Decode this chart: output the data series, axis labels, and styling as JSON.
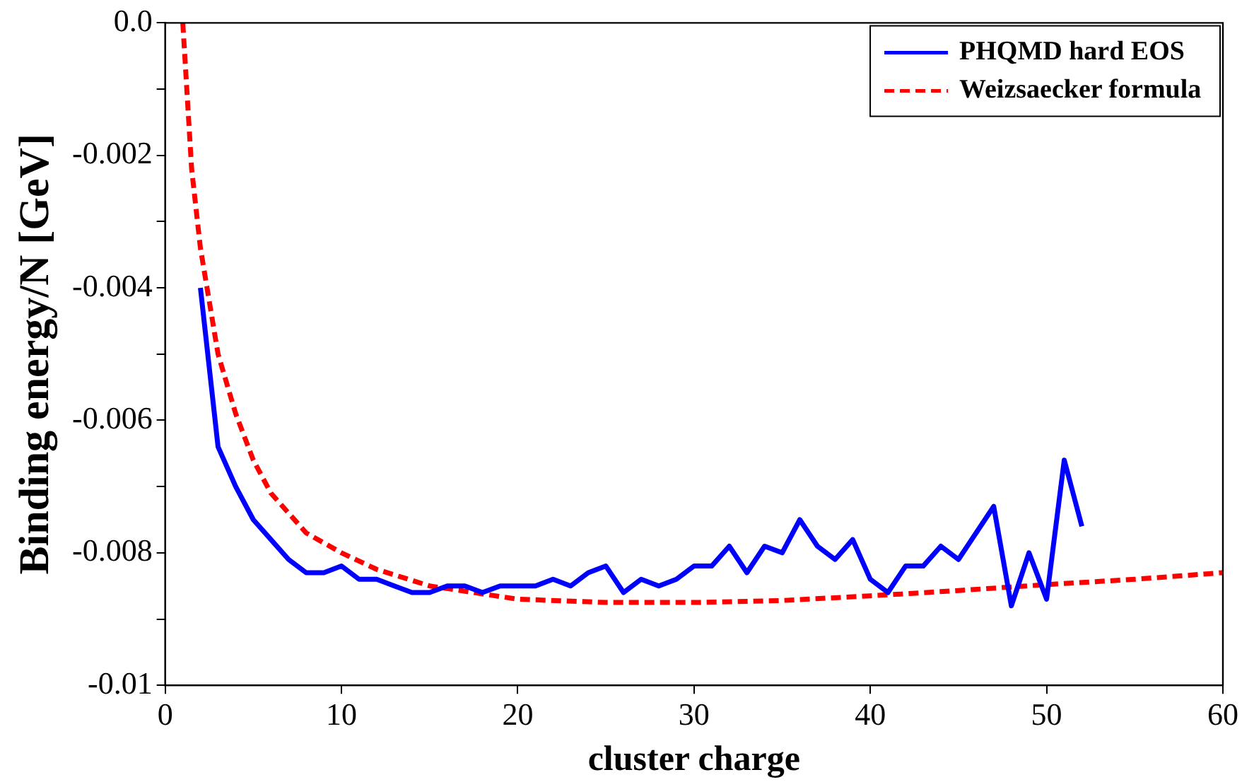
{
  "chart_data": {
    "type": "line",
    "xlabel": "cluster charge",
    "ylabel": "Binding energy/N [GeV]",
    "xlim": [
      0,
      60
    ],
    "xticks": [
      0,
      10,
      20,
      30,
      40,
      50,
      60
    ],
    "ylim": [
      -0.01,
      0
    ],
    "yticks": [
      {
        "value": 0,
        "label": "0.0"
      },
      {
        "value": -0.001,
        "label": null
      },
      -0.002,
      {
        "value": -0.003,
        "label": null
      },
      -0.004,
      {
        "value": -0.005,
        "label": null
      },
      -0.006,
      {
        "value": -0.007,
        "label": null
      },
      -0.008,
      {
        "value": -0.009,
        "label": null
      },
      -0.01
    ],
    "grid": false,
    "legend": "top right",
    "marker": "none",
    "series": [
      {
        "name": "PHQMD hard EOS",
        "color": "#0000ff",
        "line_style": "solid",
        "x": [
          2,
          3,
          4,
          5,
          6,
          7,
          8,
          9,
          10,
          11,
          12,
          13,
          14,
          15,
          16,
          17,
          18,
          19,
          20,
          21,
          22,
          23,
          24,
          25,
          26,
          27,
          28,
          29,
          30,
          31,
          32,
          33,
          34,
          35,
          36,
          37,
          38,
          39,
          40,
          41,
          42,
          43,
          44,
          45,
          46,
          47,
          48,
          49,
          50,
          51,
          52
        ],
        "values": [
          -0.004,
          -0.0064,
          -0.007,
          -0.0075,
          -0.0078,
          -0.0081,
          -0.0083,
          -0.0083,
          -0.0082,
          -0.0084,
          -0.0084,
          -0.0085,
          -0.0086,
          -0.0086,
          -0.0085,
          -0.0085,
          -0.0086,
          -0.0085,
          -0.0085,
          -0.0085,
          -0.0084,
          -0.0085,
          -0.0083,
          -0.0082,
          -0.0086,
          -0.0084,
          -0.0085,
          -0.0084,
          -0.0082,
          -0.0082,
          -0.0079,
          -0.0083,
          -0.0079,
          -0.008,
          -0.0075,
          -0.0079,
          -0.0081,
          -0.0078,
          -0.0084,
          -0.0086,
          -0.0082,
          -0.0082,
          -0.0079,
          -0.0081,
          -0.0077,
          -0.0073,
          -0.0088,
          -0.008,
          -0.0087,
          -0.0066,
          -0.0076
        ]
      },
      {
        "name": "Weizsaecker formula",
        "color": "#ff0000",
        "line_style": "dashed",
        "x": [
          1,
          1.5,
          2,
          3,
          4,
          5,
          6,
          7,
          8,
          10,
          12,
          15,
          20,
          25,
          30,
          35,
          40,
          45,
          50,
          55,
          60
        ],
        "values": [
          0,
          -0.0022,
          -0.0034,
          -0.005,
          -0.0059,
          -0.0066,
          -0.0071,
          -0.0074,
          -0.0077,
          -0.008,
          -0.00825,
          -0.0085,
          -0.0087,
          -0.00875,
          -0.00875,
          -0.00872,
          -0.00865,
          -0.00857,
          -0.00848,
          -0.0084,
          -0.0083
        ]
      }
    ]
  }
}
